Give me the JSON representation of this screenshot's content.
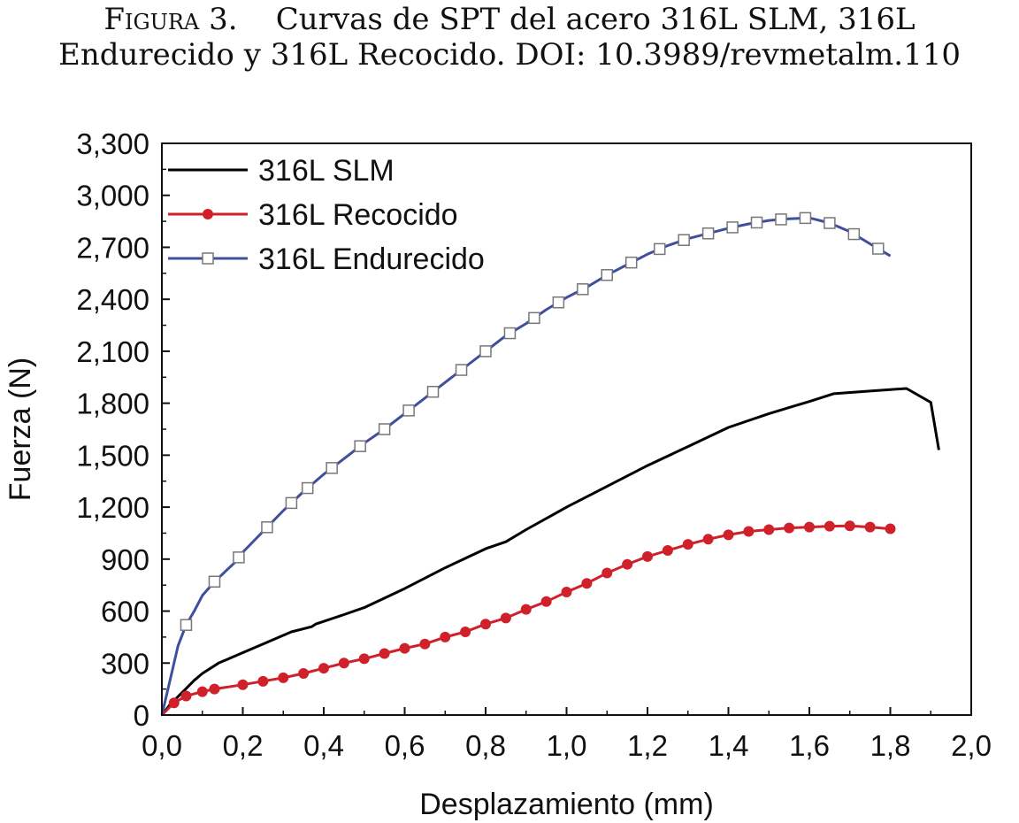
{
  "caption": {
    "figure_label": "Figura 3.",
    "line1": "Curvas de SPT del acero 316L SLM, 316L",
    "line2": "Endurecido y 316L Recocido. DOI: 10.3989/revmetalm.110"
  },
  "chart_data": {
    "type": "line",
    "xlabel": "Desplazamiento (mm)",
    "ylabel": "Fuerza (N)",
    "xlim": [
      0,
      2.0
    ],
    "ylim": [
      0,
      3300
    ],
    "x_ticks": [
      "0,0",
      "0,2",
      "0,4",
      "0,6",
      "0,8",
      "1,0",
      "1,2",
      "1,4",
      "1,6",
      "1,8",
      "2,0"
    ],
    "y_ticks": [
      "0",
      "300",
      "600",
      "900",
      "1,200",
      "1,500",
      "1,800",
      "2,100",
      "2,400",
      "2,700",
      "3,000",
      "3,300"
    ],
    "legend_position": "top-left",
    "grid": false,
    "series": [
      {
        "name": "316L SLM",
        "color": "#000000",
        "marker": "none",
        "points": [
          [
            0,
            0
          ],
          [
            0.02,
            60
          ],
          [
            0.05,
            130
          ],
          [
            0.08,
            200
          ],
          [
            0.1,
            240
          ],
          [
            0.14,
            300
          ],
          [
            0.2,
            360
          ],
          [
            0.25,
            410
          ],
          [
            0.32,
            480
          ],
          [
            0.37,
            510
          ],
          [
            0.38,
            525
          ],
          [
            0.45,
            580
          ],
          [
            0.5,
            620
          ],
          [
            0.6,
            730
          ],
          [
            0.7,
            850
          ],
          [
            0.8,
            960
          ],
          [
            0.85,
            1000
          ],
          [
            0.9,
            1070
          ],
          [
            1.0,
            1200
          ],
          [
            1.1,
            1320
          ],
          [
            1.2,
            1440
          ],
          [
            1.3,
            1550
          ],
          [
            1.4,
            1660
          ],
          [
            1.5,
            1740
          ],
          [
            1.6,
            1810
          ],
          [
            1.66,
            1855
          ],
          [
            1.75,
            1870
          ],
          [
            1.84,
            1885
          ],
          [
            1.9,
            1805
          ],
          [
            1.92,
            1530
          ]
        ]
      },
      {
        "name": "316L Recocido",
        "color": "#d0202a",
        "marker": "filled-circle",
        "points": [
          [
            0,
            0
          ],
          [
            0.03,
            70
          ],
          [
            0.06,
            110
          ],
          [
            0.1,
            135
          ],
          [
            0.13,
            150
          ],
          [
            0.2,
            175
          ],
          [
            0.25,
            195
          ],
          [
            0.3,
            215
          ],
          [
            0.35,
            240
          ],
          [
            0.4,
            270
          ],
          [
            0.45,
            300
          ],
          [
            0.5,
            325
          ],
          [
            0.55,
            355
          ],
          [
            0.6,
            385
          ],
          [
            0.65,
            410
          ],
          [
            0.7,
            450
          ],
          [
            0.75,
            480
          ],
          [
            0.8,
            525
          ],
          [
            0.85,
            560
          ],
          [
            0.9,
            610
          ],
          [
            0.95,
            655
          ],
          [
            1.0,
            710
          ],
          [
            1.05,
            760
          ],
          [
            1.1,
            820
          ],
          [
            1.15,
            870
          ],
          [
            1.2,
            915
          ],
          [
            1.25,
            950
          ],
          [
            1.3,
            985
          ],
          [
            1.35,
            1015
          ],
          [
            1.4,
            1040
          ],
          [
            1.45,
            1060
          ],
          [
            1.5,
            1070
          ],
          [
            1.55,
            1080
          ],
          [
            1.6,
            1085
          ],
          [
            1.65,
            1090
          ],
          [
            1.7,
            1092
          ],
          [
            1.75,
            1085
          ],
          [
            1.8,
            1075
          ]
        ]
      },
      {
        "name": "316L Endurecido",
        "color": "#3f4f9e",
        "marker": "open-square",
        "points": [
          [
            0,
            0
          ],
          [
            0.02,
            200
          ],
          [
            0.04,
            400
          ],
          [
            0.06,
            520
          ],
          [
            0.08,
            600
          ],
          [
            0.1,
            690
          ],
          [
            0.13,
            770
          ],
          [
            0.18,
            880
          ],
          [
            0.2,
            940
          ],
          [
            0.25,
            1060
          ],
          [
            0.3,
            1180
          ],
          [
            0.35,
            1290
          ],
          [
            0.4,
            1390
          ],
          [
            0.45,
            1480
          ],
          [
            0.5,
            1570
          ],
          [
            0.55,
            1650
          ],
          [
            0.6,
            1740
          ],
          [
            0.65,
            1830
          ],
          [
            0.7,
            1920
          ],
          [
            0.75,
            2010
          ],
          [
            0.8,
            2100
          ],
          [
            0.85,
            2190
          ],
          [
            0.9,
            2260
          ],
          [
            0.95,
            2340
          ],
          [
            1.0,
            2410
          ],
          [
            1.05,
            2470
          ],
          [
            1.1,
            2540
          ],
          [
            1.15,
            2600
          ],
          [
            1.2,
            2660
          ],
          [
            1.25,
            2710
          ],
          [
            1.3,
            2750
          ],
          [
            1.35,
            2780
          ],
          [
            1.4,
            2810
          ],
          [
            1.45,
            2835
          ],
          [
            1.5,
            2855
          ],
          [
            1.55,
            2865
          ],
          [
            1.6,
            2870
          ],
          [
            1.65,
            2840
          ],
          [
            1.7,
            2790
          ],
          [
            1.75,
            2720
          ],
          [
            1.8,
            2650
          ]
        ],
        "marker_x": [
          0.06,
          0.13,
          0.19,
          0.26,
          0.32,
          0.36,
          0.42,
          0.49,
          0.55,
          0.61,
          0.67,
          0.74,
          0.8,
          0.86,
          0.92,
          0.98,
          1.04,
          1.1,
          1.16,
          1.23,
          1.29,
          1.35,
          1.41,
          1.47,
          1.53,
          1.59,
          1.65,
          1.71,
          1.77
        ]
      }
    ]
  }
}
